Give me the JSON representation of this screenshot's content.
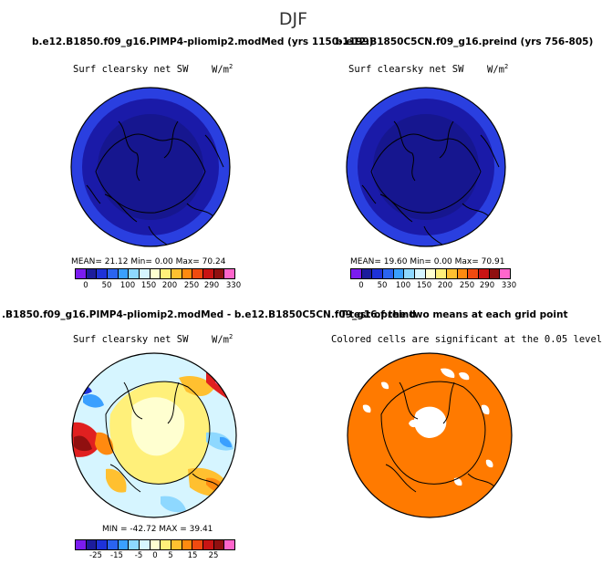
{
  "season": "DJF",
  "panels": {
    "top_left": {
      "title": "b.e12.B1850.f09_g16.PIMP4-pliomip2.modMed (yrs 1150-1199)",
      "variable": "Surf clearsky net SW",
      "units": "W/m",
      "units_exp": "2",
      "stats": "MEAN=  21.12  Min=    0.00  Max=   70.24"
    },
    "top_right": {
      "title": "b.e12.B1850C5CN.f09_g16.preind (yrs 756-805)",
      "variable": "Surf clearsky net SW",
      "units": "W/m",
      "units_exp": "2",
      "stats": "MEAN=  19.60  Min=    0.00  Max=   70.91"
    },
    "bottom_left": {
      "title": ".B1850.f09_g16.PIMP4-pliomip2.modMed - b.e12.B1850C5CN.f09_g16.preind",
      "variable": "Surf clearsky net SW",
      "units": "W/m",
      "units_exp": "2",
      "stats": "MIN = -42.72  MAX =   39.41"
    },
    "bottom_right": {
      "title": "T-test of the two means at each grid point",
      "subtitle": "Colored cells are significant at the 0.05 level"
    }
  },
  "colorbar_abs": {
    "colors": [
      "#7b1cf0",
      "#1c1c9c",
      "#1e32d8",
      "#2a64f0",
      "#3aa0ff",
      "#8ed8ff",
      "#d6f5ff",
      "#ffffd0",
      "#fff07a",
      "#ffc030",
      "#ff8a10",
      "#f04a10",
      "#c81414",
      "#901010",
      "#ff66cc"
    ],
    "ticks": [
      "0",
      "50",
      "100",
      "150",
      "200",
      "250",
      "290",
      "330"
    ]
  },
  "colorbar_diff": {
    "colors": [
      "#7b1cf0",
      "#1c1c9c",
      "#1e32d8",
      "#2a64f0",
      "#3aa0ff",
      "#8ed8ff",
      "#d6f5ff",
      "#ffffd0",
      "#fff07a",
      "#ffc030",
      "#ff8a10",
      "#f04a10",
      "#c81414",
      "#901010",
      "#ff66cc"
    ],
    "ticks": [
      "-25",
      "-15",
      "-5",
      "0",
      "5",
      "15",
      "25"
    ]
  }
}
